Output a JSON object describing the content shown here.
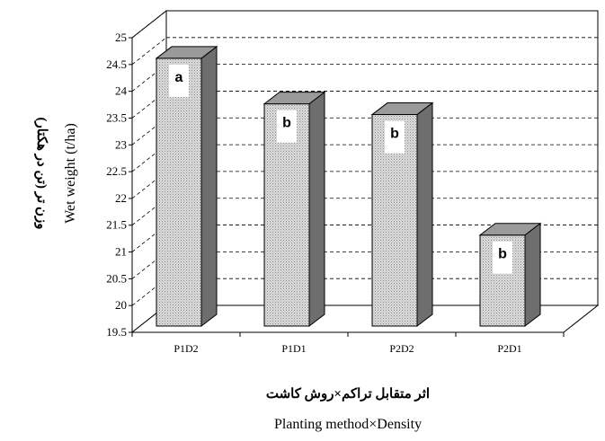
{
  "chart_data": {
    "type": "bar",
    "categories": [
      "P1D2",
      "P1D1",
      "P2D2",
      "P2D1"
    ],
    "values": [
      24.8,
      23.95,
      23.75,
      21.5
    ],
    "letters": [
      "a",
      "b",
      "b",
      "b"
    ],
    "xlabel_fa": "اثر متقابل تراکم×روش کاشت",
    "xlabel": "Planting method×Density",
    "ylabel_fa": "وزن تر (تن در هکتار)",
    "ylabel": "Wet weight (t/ha)",
    "ylim": [
      19.5,
      25
    ],
    "yticks": [
      "19.5",
      "20",
      "20.5",
      "21",
      "21.5",
      "22",
      "22.5",
      "23",
      "23.5",
      "24",
      "24.5",
      "25"
    ],
    "grid": true,
    "style": "3d"
  }
}
